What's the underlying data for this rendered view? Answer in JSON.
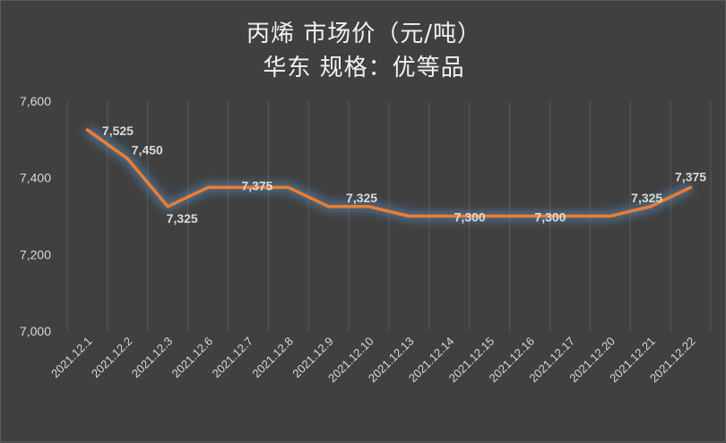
{
  "chart_data": {
    "type": "line",
    "title_line1": "丙烯  市场价（元/吨）",
    "title_line2": "华东      规格：优等品",
    "categories": [
      "2021.12.1",
      "2021.12.2",
      "2021.12.3",
      "2021.12.6",
      "2021.12.7",
      "2021.12.8",
      "2021.12.9",
      "2021.12.10",
      "2021.12.13",
      "2021.12.14",
      "2021.12.15",
      "2021.12.16",
      "2021.12.17",
      "2021.12.20",
      "2021.12.21",
      "2021.12.22"
    ],
    "values": [
      7525,
      7450,
      7325,
      7375,
      7375,
      7375,
      7325,
      7325,
      7300,
      7300,
      7300,
      7300,
      7300,
      7300,
      7325,
      7375
    ],
    "data_labels": [
      {
        "index": 0,
        "text": "7,525"
      },
      {
        "index": 1,
        "text": "7,450"
      },
      {
        "index": 2,
        "text": "7,325"
      },
      {
        "index": 4,
        "text": "7,375"
      },
      {
        "index": 7,
        "text": "7,325"
      },
      {
        "index": 10,
        "text": "7,300"
      },
      {
        "index": 12,
        "text": "7,300"
      },
      {
        "index": 14,
        "text": "7,325"
      },
      {
        "index": 15,
        "text": "7,375"
      }
    ],
    "y_ticks": [
      "7,000",
      "7,200",
      "7,400",
      "7,600"
    ],
    "ylim": [
      7000,
      7600
    ],
    "grid": "vertical",
    "line_color": "#ed7d31",
    "glow_color": "#5b9bd5"
  }
}
